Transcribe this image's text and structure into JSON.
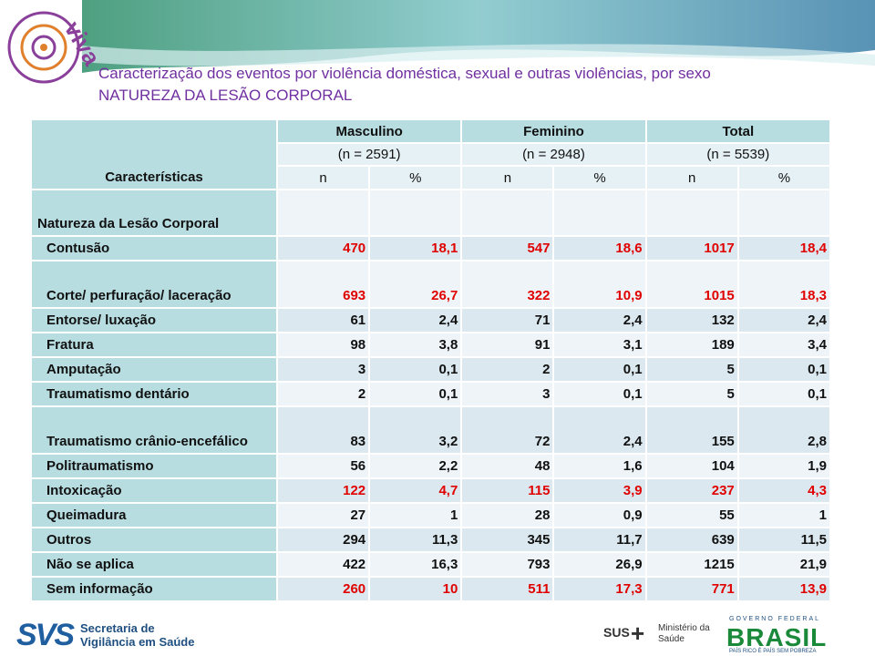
{
  "logo": "viva",
  "header": {
    "title": "Caracterização dos eventos por violência doméstica, sexual e outras violências, por sexo",
    "subtitle": "NATUREZA DA LESÃO CORPORAL"
  },
  "table": {
    "corner": "Características",
    "groups": [
      "Masculino",
      "Feminino",
      "Total"
    ],
    "group_n": [
      "(n = 2591)",
      "(n = 2948)",
      "(n = 5539)"
    ],
    "subcols": [
      "n",
      "%",
      "n",
      "%",
      "n",
      "%"
    ],
    "section": "Natureza da Lesão Corporal",
    "rows": [
      {
        "label": "Contusão",
        "highlight": true,
        "cells": [
          "470",
          "18,1",
          "547",
          "18,6",
          "1017",
          "18,4"
        ]
      },
      {
        "label": "Corte/ perfuração/ laceração",
        "highlight": true,
        "cells": [
          "693",
          "26,7",
          "322",
          "10,9",
          "1015",
          "18,3"
        ]
      },
      {
        "label": "Entorse/ luxação",
        "highlight": false,
        "cells": [
          "61",
          "2,4",
          "71",
          "2,4",
          "132",
          "2,4"
        ]
      },
      {
        "label": "Fratura",
        "highlight": false,
        "cells": [
          "98",
          "3,8",
          "91",
          "3,1",
          "189",
          "3,4"
        ]
      },
      {
        "label": "Amputação",
        "highlight": false,
        "cells": [
          "3",
          "0,1",
          "2",
          "0,1",
          "5",
          "0,1"
        ]
      },
      {
        "label": "Traumatismo dentário",
        "highlight": false,
        "cells": [
          "2",
          "0,1",
          "3",
          "0,1",
          "5",
          "0,1"
        ]
      },
      {
        "label": "Traumatismo crânio-encefálico",
        "highlight": false,
        "cells": [
          "83",
          "3,2",
          "72",
          "2,4",
          "155",
          "2,8"
        ]
      },
      {
        "label": "Politraumatismo",
        "highlight": false,
        "cells": [
          "56",
          "2,2",
          "48",
          "1,6",
          "104",
          "1,9"
        ]
      },
      {
        "label": "Intoxicação",
        "highlight": true,
        "cells": [
          "122",
          "4,7",
          "115",
          "3,9",
          "237",
          "4,3"
        ]
      },
      {
        "label": "Queimadura",
        "highlight": false,
        "cells": [
          "27",
          "1",
          "28",
          "0,9",
          "55",
          "1"
        ]
      },
      {
        "label": "Outros",
        "highlight": false,
        "cells": [
          "294",
          "11,3",
          "345",
          "11,7",
          "639",
          "11,5"
        ]
      },
      {
        "label": "Não se aplica",
        "highlight": false,
        "cells": [
          "422",
          "16,3",
          "793",
          "26,9",
          "1215",
          "21,9"
        ]
      },
      {
        "label": "Sem informação",
        "highlight": true,
        "cells": [
          "260",
          "10",
          "511",
          "17,3",
          "771",
          "13,9"
        ]
      }
    ]
  },
  "footer": {
    "svs": "SVS",
    "svs_name": "Secretaria de Vigilância em Saúde",
    "sus": "SUS",
    "ministry": "Ministério da Saúde",
    "gov": "GOVERNO FEDERAL",
    "brasil": "BRASIL",
    "slogan": "PAÍS RICO É PAÍS SEM POBREZA"
  }
}
